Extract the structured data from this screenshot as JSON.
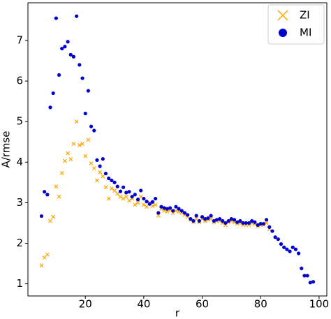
{
  "chart_data": {
    "type": "scatter",
    "xlabel": "r",
    "ylabel": "A/rmse",
    "xlim": [
      0.35,
      102.65
    ],
    "ylim": [
      0.7,
      7.93
    ],
    "xticks": [
      20,
      40,
      60,
      80,
      100
    ],
    "yticks": [
      1,
      2,
      3,
      4,
      5,
      6,
      7
    ],
    "legend": "upper right",
    "series": [
      {
        "name": "ZI",
        "color": "#ffa500",
        "marker": "x",
        "x": [
          5,
          6,
          7,
          8,
          9,
          10,
          11,
          12,
          13,
          14,
          15,
          16,
          17,
          18,
          19,
          20,
          21,
          22,
          23,
          24,
          25,
          26,
          27,
          28,
          29,
          30,
          31,
          32,
          33,
          34,
          35,
          36,
          37,
          38,
          39,
          40,
          41,
          42,
          43,
          44,
          45,
          46,
          47,
          48,
          49,
          50,
          51,
          52,
          53,
          54,
          55,
          56,
          57,
          58,
          59,
          60,
          61,
          62,
          63,
          64,
          65,
          66,
          67,
          68,
          69,
          70,
          71,
          72,
          73,
          74,
          75,
          76,
          77,
          78,
          79,
          80,
          81,
          82,
          83
        ],
        "values": [
          1.45,
          1.65,
          1.72,
          2.55,
          2.65,
          3.4,
          3.15,
          3.73,
          4.03,
          4.22,
          4.07,
          4.45,
          5.0,
          4.42,
          4.45,
          4.15,
          4.55,
          3.97,
          3.85,
          3.55,
          3.75,
          3.65,
          3.38,
          3.1,
          3.35,
          3.3,
          3.22,
          3.15,
          3.1,
          3.15,
          3.05,
          3.1,
          2.95,
          3.0,
          3.15,
          2.95,
          2.9,
          3.0,
          2.92,
          2.95,
          2.68,
          2.85,
          2.8,
          2.78,
          2.82,
          2.75,
          2.8,
          2.78,
          2.75,
          2.7,
          2.65,
          2.58,
          2.52,
          2.6,
          2.52,
          2.6,
          2.55,
          2.58,
          2.6,
          2.52,
          2.55,
          2.55,
          2.5,
          2.45,
          2.52,
          2.55,
          2.52,
          2.48,
          2.5,
          2.45,
          2.45,
          2.45,
          2.5,
          2.48,
          2.42,
          2.45,
          2.45,
          2.5,
          2.35
        ]
      },
      {
        "name": "MI",
        "color": "#0000cc",
        "marker": "o",
        "x": [
          5,
          6,
          7,
          8,
          9,
          10,
          11,
          12,
          13,
          14,
          15,
          16,
          17,
          18,
          19,
          20,
          21,
          22,
          23,
          24,
          25,
          26,
          27,
          28,
          29,
          30,
          31,
          32,
          33,
          34,
          35,
          36,
          37,
          38,
          39,
          40,
          41,
          42,
          43,
          44,
          45,
          46,
          47,
          48,
          49,
          50,
          51,
          52,
          53,
          54,
          55,
          56,
          57,
          58,
          59,
          60,
          61,
          62,
          63,
          64,
          65,
          66,
          67,
          68,
          69,
          70,
          71,
          72,
          73,
          74,
          75,
          76,
          77,
          78,
          79,
          80,
          81,
          82,
          83,
          84,
          85,
          86,
          87,
          88,
          89,
          90,
          91,
          92,
          93,
          94,
          95,
          96,
          97,
          98
        ],
        "values": [
          2.67,
          3.27,
          3.2,
          5.35,
          5.7,
          7.55,
          6.15,
          6.8,
          6.85,
          6.97,
          6.65,
          6.6,
          7.6,
          6.4,
          6.07,
          5.2,
          5.76,
          4.88,
          4.78,
          4.05,
          3.9,
          4.08,
          3.72,
          3.6,
          3.55,
          3.5,
          3.4,
          3.28,
          3.38,
          3.25,
          3.27,
          3.15,
          3.2,
          3.08,
          3.3,
          3.1,
          3.03,
          2.97,
          3.02,
          3.1,
          2.75,
          2.9,
          2.87,
          2.85,
          2.87,
          2.8,
          2.9,
          2.85,
          2.8,
          2.75,
          2.7,
          2.6,
          2.55,
          2.68,
          2.55,
          2.65,
          2.6,
          2.62,
          2.68,
          2.55,
          2.58,
          2.6,
          2.55,
          2.5,
          2.55,
          2.6,
          2.58,
          2.52,
          2.55,
          2.5,
          2.5,
          2.5,
          2.55,
          2.52,
          2.45,
          2.48,
          2.48,
          2.58,
          2.4,
          2.3,
          2.15,
          2.1,
          1.98,
          1.9,
          1.85,
          1.8,
          1.9,
          1.85,
          1.75,
          1.38,
          1.2,
          1.2,
          1.03,
          1.05
        ]
      }
    ]
  }
}
